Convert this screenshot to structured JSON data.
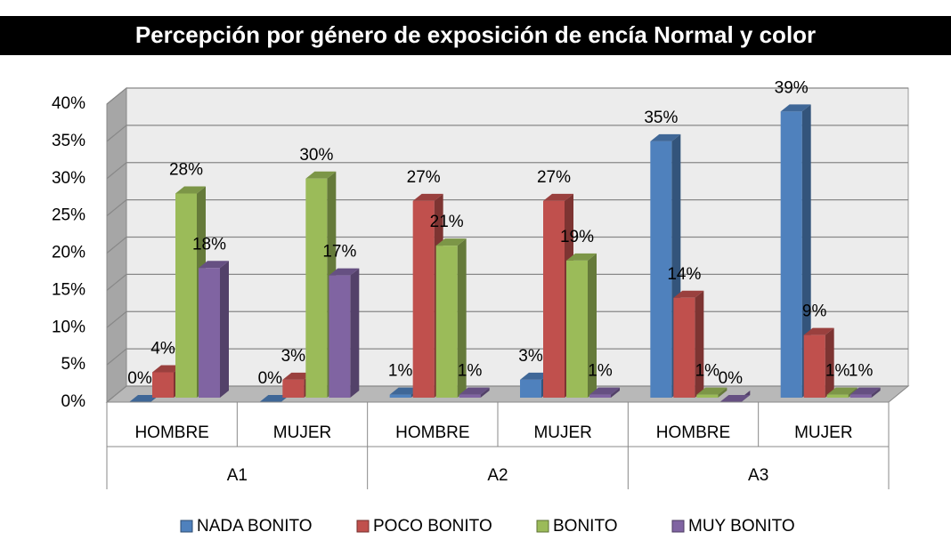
{
  "chart_data": {
    "type": "bar3d",
    "title": "Percepción por género de exposición de encía Normal y color",
    "categories": [
      "HOMBRE",
      "MUJER",
      "HOMBRE",
      "MUJER",
      "HOMBRE",
      "MUJER"
    ],
    "groups": [
      {
        "name": "A1",
        "span": 2
      },
      {
        "name": "A2",
        "span": 2
      },
      {
        "name": "A3",
        "span": 2
      }
    ],
    "series": [
      {
        "name": "NADA BONITO",
        "color": "#4f81bd",
        "values": [
          0,
          0,
          1,
          3,
          35,
          39
        ],
        "value_labels": [
          "0%",
          "0%",
          "1%",
          "3%",
          "35%",
          "39%"
        ]
      },
      {
        "name": "POCO BONITO",
        "color": "#c0504d",
        "values": [
          4,
          3,
          27,
          27,
          14,
          9
        ],
        "value_labels": [
          "4%",
          "3%",
          "27%",
          "27%",
          "14%",
          "9%"
        ]
      },
      {
        "name": "BONITO",
        "color": "#9bbb59",
        "values": [
          28,
          30,
          21,
          19,
          1,
          1
        ],
        "value_labels": [
          "28%",
          "30%",
          "21%",
          "19%",
          "1%",
          "1%"
        ]
      },
      {
        "name": "MUY BONITO",
        "color": "#8064a2",
        "values": [
          18,
          17,
          1,
          1,
          0,
          1
        ],
        "value_labels": [
          "18%",
          "17%",
          "1%",
          "1%",
          "0%",
          "1%"
        ]
      }
    ],
    "ylim": [
      0,
      40
    ],
    "yticks": [
      {
        "value": 0,
        "label": "0%"
      },
      {
        "value": 5,
        "label": "5%"
      },
      {
        "value": 10,
        "label": "10%"
      },
      {
        "value": 15,
        "label": "15%"
      },
      {
        "value": 20,
        "label": "20%"
      },
      {
        "value": 25,
        "label": "25%"
      },
      {
        "value": 30,
        "label": "30%"
      },
      {
        "value": 35,
        "label": "35%"
      },
      {
        "value": 40,
        "label": "40%"
      }
    ],
    "grid": true,
    "legend": "bottom"
  }
}
